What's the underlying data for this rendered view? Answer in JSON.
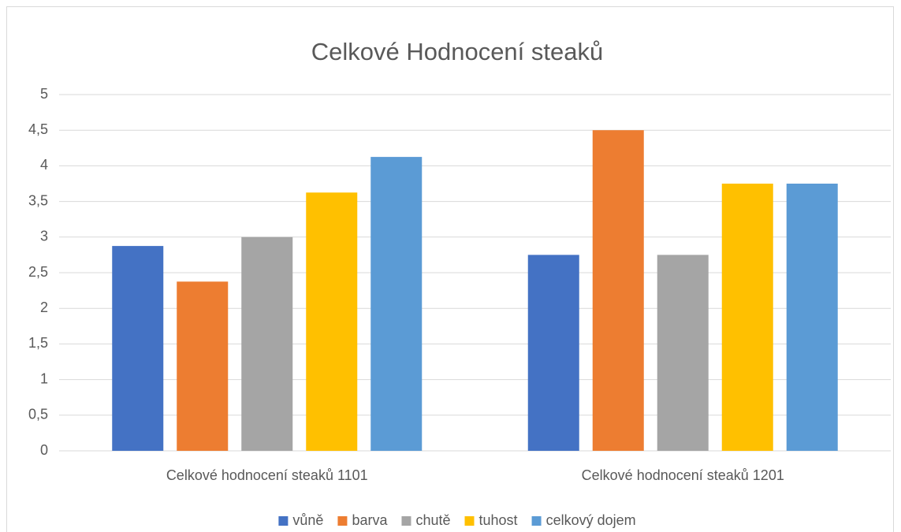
{
  "chart_data": {
    "type": "bar",
    "title": "Celkové Hodnocení steaků",
    "categories": [
      "Celkové hodnocení steaků 1101",
      "Celkové hodnocení steaků 1201"
    ],
    "series": [
      {
        "name": "vůně",
        "color": "#4472c4",
        "values": [
          2.875,
          2.75
        ]
      },
      {
        "name": "barva",
        "color": "#ed7d31",
        "values": [
          2.375,
          4.5
        ]
      },
      {
        "name": "chutě",
        "color": "#a5a5a5",
        "values": [
          3,
          2.75
        ]
      },
      {
        "name": "tuhost",
        "color": "#ffc000",
        "values": [
          3.625,
          3.75
        ]
      },
      {
        "name": "celkový dojem",
        "color": "#5b9bd5",
        "values": [
          4.125,
          3.75
        ]
      }
    ],
    "ylim": [
      0,
      5
    ],
    "yticks": [
      0,
      {
        "value": 0.5,
        "label": "0,5"
      },
      1,
      {
        "value": 1.5,
        "label": "1,5"
      },
      2,
      {
        "value": 2.5,
        "label": "2,5"
      },
      3,
      {
        "value": 3.5,
        "label": "3,5"
      },
      4,
      {
        "value": 4.5,
        "label": "4,5"
      },
      5
    ],
    "grid": true,
    "legend": "bottom"
  }
}
